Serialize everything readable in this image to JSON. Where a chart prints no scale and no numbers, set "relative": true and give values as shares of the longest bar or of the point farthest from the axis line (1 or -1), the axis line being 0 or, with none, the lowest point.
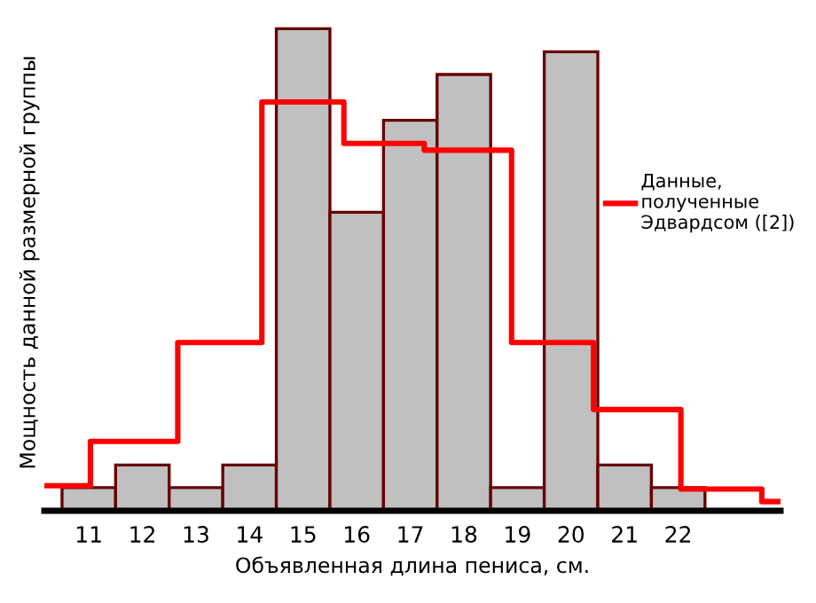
{
  "chart_data": {
    "type": "histogram",
    "relative": true,
    "xlabel": "Объявленная длина пениса, см.",
    "ylabel": "Мощность данной размерной группы",
    "bins": [
      10.5,
      11.5,
      12.5,
      13.5,
      14.5,
      15.5,
      16.5,
      17.5,
      18.5,
      19.5,
      20.5,
      21.5,
      22.5
    ],
    "values": [
      0.048,
      0.095,
      0.048,
      0.095,
      1,
      0.619,
      0.81,
      0.905,
      0.048,
      0.952,
      0.095,
      0.048
    ],
    "color": "#c0c0c0",
    "series": [
      {
        "type": "step",
        "name": "Данные,\nполученные\nЭдвардсом ([2])",
        "color": "#ff0000",
        "x": [
          10.17,
          11.03,
          12.66,
          14.23,
          15.76,
          17.26,
          18.89,
          20.42,
          22.05,
          23.56,
          23.91
        ],
        "values": [
          0.052,
          0.144,
          0.349,
          0.848,
          0.762,
          0.748,
          0.349,
          0.21,
          0.045,
          0.019,
          0.019
        ]
      }
    ],
    "xlim": [
      10.17,
      23.91
    ],
    "xticks": [
      11,
      12,
      13,
      14,
      15,
      16,
      17,
      18,
      19,
      20,
      21,
      22
    ],
    "legend": "right",
    "grid": false
  }
}
